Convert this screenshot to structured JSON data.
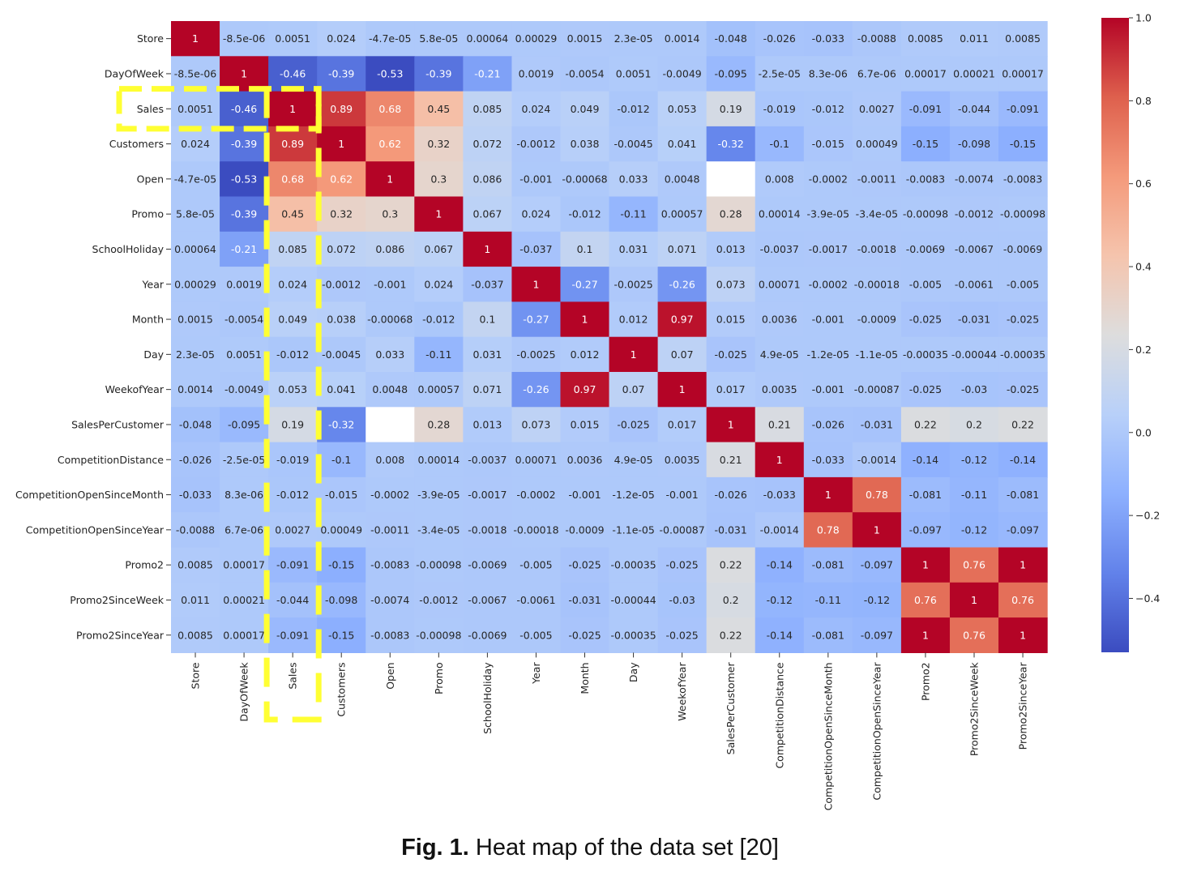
{
  "chart_data": {
    "type": "heatmap",
    "title": "",
    "colormap": "coolwarm",
    "vmin": -0.53,
    "vmax": 1.0,
    "row_labels": [
      "Store",
      "DayOfWeek",
      "Sales",
      "Customers",
      "Open",
      "Promo",
      "SchoolHoliday",
      "Year",
      "Month",
      "Day",
      "WeekofYear",
      "SalesPerCustomer",
      "CompetitionDistance",
      "CompetitionOpenSinceMonth",
      "CompetitionOpenSinceYear",
      "Promo2",
      "Promo2SinceWeek",
      "Promo2SinceYear"
    ],
    "col_labels": [
      "Store",
      "DayOfWeek",
      "Sales",
      "Customers",
      "Open",
      "Promo",
      "SchoolHoliday",
      "Year",
      "Month",
      "Day",
      "WeekofYear",
      "SalesPerCustomer",
      "CompetitionDistance",
      "CompetitionOpenSinceMonth",
      "CompetitionOpenSinceYear",
      "Promo2",
      "Promo2SinceWeek",
      "Promo2SinceYear"
    ],
    "values": [
      [
        "1",
        "-8.5e-06",
        "0.0051",
        "0.024",
        "-4.7e-05",
        "5.8e-05",
        "0.00064",
        "0.00029",
        "0.0015",
        "2.3e-05",
        "0.0014",
        "-0.048",
        "-0.026",
        "-0.033",
        "-0.0088",
        "0.0085",
        "0.011",
        "0.0085"
      ],
      [
        "-8.5e-06",
        "1",
        "-0.46",
        "-0.39",
        "-0.53",
        "-0.39",
        "-0.21",
        "0.0019",
        "-0.0054",
        "0.0051",
        "-0.0049",
        "-0.095",
        "-2.5e-05",
        "8.3e-06",
        "6.7e-06",
        "0.00017",
        "0.00021",
        "0.00017"
      ],
      [
        "0.0051",
        "-0.46",
        "1",
        "0.89",
        "0.68",
        "0.45",
        "0.085",
        "0.024",
        "0.049",
        "-0.012",
        "0.053",
        "0.19",
        "-0.019",
        "-0.012",
        "0.0027",
        "-0.091",
        "-0.044",
        "-0.091"
      ],
      [
        "0.024",
        "-0.39",
        "0.89",
        "1",
        "0.62",
        "0.32",
        "0.072",
        "-0.0012",
        "0.038",
        "-0.0045",
        "0.041",
        "-0.32",
        "-0.1",
        "-0.015",
        "0.00049",
        "-0.15",
        "-0.098",
        "-0.15"
      ],
      [
        "-4.7e-05",
        "-0.53",
        "0.68",
        "0.62",
        "1",
        "0.3",
        "0.086",
        "-0.001",
        "-0.00068",
        "0.033",
        "0.0048",
        null,
        "0.008",
        "-0.0002",
        "-0.0011",
        "-0.0083",
        "-0.0074",
        "-0.0083"
      ],
      [
        "5.8e-05",
        "-0.39",
        "0.45",
        "0.32",
        "0.3",
        "1",
        "0.067",
        "0.024",
        "-0.012",
        "-0.11",
        "0.00057",
        "0.28",
        "0.00014",
        "-3.9e-05",
        "-3.4e-05",
        "-0.00098",
        "-0.0012",
        "-0.00098"
      ],
      [
        "0.00064",
        "-0.21",
        "0.085",
        "0.072",
        "0.086",
        "0.067",
        "1",
        "-0.037",
        "0.1",
        "0.031",
        "0.071",
        "0.013",
        "-0.0037",
        "-0.0017",
        "-0.0018",
        "-0.0069",
        "-0.0067",
        "-0.0069"
      ],
      [
        "0.00029",
        "0.0019",
        "0.024",
        "-0.0012",
        "-0.001",
        "0.024",
        "-0.037",
        "1",
        "-0.27",
        "-0.0025",
        "-0.26",
        "0.073",
        "0.00071",
        "-0.0002",
        "-0.00018",
        "-0.005",
        "-0.0061",
        "-0.005"
      ],
      [
        "0.0015",
        "-0.0054",
        "0.049",
        "0.038",
        "-0.00068",
        "-0.012",
        "0.1",
        "-0.27",
        "1",
        "0.012",
        "0.97",
        "0.015",
        "0.0036",
        "-0.001",
        "-0.0009",
        "-0.025",
        "-0.031",
        "-0.025"
      ],
      [
        "2.3e-05",
        "0.0051",
        "-0.012",
        "-0.0045",
        "0.033",
        "-0.11",
        "0.031",
        "-0.0025",
        "0.012",
        "1",
        "0.07",
        "-0.025",
        "4.9e-05",
        "-1.2e-05",
        "-1.1e-05",
        "-0.00035",
        "-0.00044",
        "-0.00035"
      ],
      [
        "0.0014",
        "-0.0049",
        "0.053",
        "0.041",
        "0.0048",
        "0.00057",
        "0.071",
        "-0.26",
        "0.97",
        "0.07",
        "1",
        "0.017",
        "0.0035",
        "-0.001",
        "-0.00087",
        "-0.025",
        "-0.03",
        "-0.025"
      ],
      [
        "-0.048",
        "-0.095",
        "0.19",
        "-0.32",
        null,
        "0.28",
        "0.013",
        "0.073",
        "0.015",
        "-0.025",
        "0.017",
        "1",
        "0.21",
        "-0.026",
        "-0.031",
        "0.22",
        "0.2",
        "0.22"
      ],
      [
        "-0.026",
        "-2.5e-05",
        "-0.019",
        "-0.1",
        "0.008",
        "0.00014",
        "-0.0037",
        "0.00071",
        "0.0036",
        "4.9e-05",
        "0.0035",
        "0.21",
        "1",
        "-0.033",
        "-0.0014",
        "-0.14",
        "-0.12",
        "-0.14"
      ],
      [
        "-0.033",
        "8.3e-06",
        "-0.012",
        "-0.015",
        "-0.0002",
        "-3.9e-05",
        "-0.0017",
        "-0.0002",
        "-0.001",
        "-1.2e-05",
        "-0.001",
        "-0.026",
        "-0.033",
        "1",
        "0.78",
        "-0.081",
        "-0.11",
        "-0.081"
      ],
      [
        "-0.0088",
        "6.7e-06",
        "0.0027",
        "0.00049",
        "-0.0011",
        "-3.4e-05",
        "-0.0018",
        "-0.00018",
        "-0.0009",
        "-1.1e-05",
        "-0.00087",
        "-0.031",
        "-0.0014",
        "0.78",
        "1",
        "-0.097",
        "-0.12",
        "-0.097"
      ],
      [
        "0.0085",
        "0.00017",
        "-0.091",
        "-0.15",
        "-0.0083",
        "-0.00098",
        "-0.0069",
        "-0.005",
        "-0.025",
        "-0.00035",
        "-0.025",
        "0.22",
        "-0.14",
        "-0.081",
        "-0.097",
        "1",
        "0.76",
        "1"
      ],
      [
        "0.011",
        "0.00021",
        "-0.044",
        "-0.098",
        "-0.0074",
        "-0.0012",
        "-0.0067",
        "-0.0061",
        "-0.031",
        "-0.00044",
        "-0.03",
        "0.2",
        "-0.12",
        "-0.11",
        "-0.12",
        "0.76",
        "1",
        "0.76"
      ],
      [
        "0.0085",
        "0.00017",
        "-0.091",
        "-0.15",
        "-0.0083",
        "-0.00098",
        "-0.0069",
        "-0.005",
        "-0.025",
        "-0.00035",
        "-0.025",
        "0.22",
        "-0.14",
        "-0.081",
        "-0.097",
        "1",
        "0.76",
        "1"
      ]
    ],
    "colorbar": {
      "ticks": [
        1.0,
        0.8,
        0.6,
        0.4,
        0.2,
        0.0,
        -0.2,
        -0.4
      ],
      "tick_labels": [
        "1.0",
        "0.8",
        "0.6",
        "0.4",
        "0.2",
        "0.0",
        "−0.2",
        "−0.4"
      ]
    },
    "highlight": {
      "color": "#ffff33",
      "style": "dashed",
      "target_row": "Sales",
      "target_col": "Sales"
    }
  },
  "caption": {
    "prefix": "Fig. 1.",
    "text": " Heat map of the data set [20]"
  }
}
